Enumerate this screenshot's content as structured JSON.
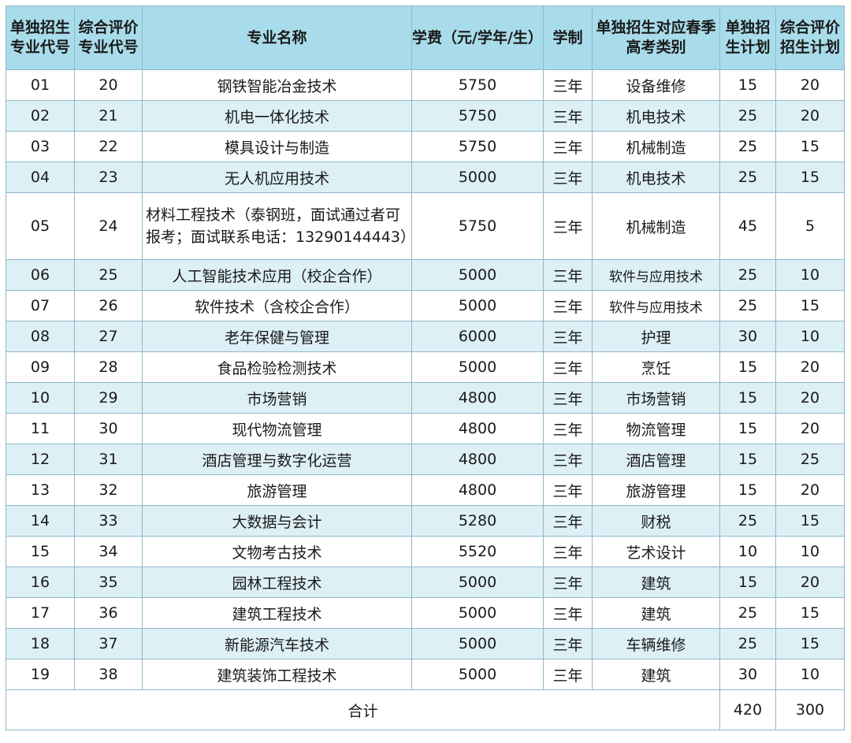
{
  "headers": [
    "单独招生专业代号",
    "综合评价专业代号",
    "专业名称",
    "学费（元/学年/生）",
    "学制",
    "单独招生对应春季高考类别",
    "单独招生计划",
    "综合评价招生计划"
  ],
  "rows": [
    {
      "code1": "01",
      "code2": "20",
      "name": "钢铁智能冶金技术",
      "fee": "5750",
      "years": "三年",
      "category": "设备维修",
      "plan1": "15",
      "plan2": "20"
    },
    {
      "code1": "02",
      "code2": "21",
      "name": "机电一体化技术",
      "fee": "5750",
      "years": "三年",
      "category": "机电技术",
      "plan1": "25",
      "plan2": "20"
    },
    {
      "code1": "03",
      "code2": "22",
      "name": "模具设计与制造",
      "fee": "5750",
      "years": "三年",
      "category": "机械制造",
      "plan1": "25",
      "plan2": "15"
    },
    {
      "code1": "04",
      "code2": "23",
      "name": "无人机应用技术",
      "fee": "5000",
      "years": "三年",
      "category": "机电技术",
      "plan1": "25",
      "plan2": "15"
    },
    {
      "code1": "05",
      "code2": "24",
      "name": "材料工程技术（泰钢班，面试通过者可报考；面试联系电话：13290144443）",
      "fee": "5750",
      "years": "三年",
      "category": "机械制造",
      "plan1": "45",
      "plan2": "5"
    },
    {
      "code1": "06",
      "code2": "25",
      "name": "人工智能技术应用（校企合作）",
      "fee": "5000",
      "years": "三年",
      "category": "软件与应用技术",
      "plan1": "25",
      "plan2": "10"
    },
    {
      "code1": "07",
      "code2": "26",
      "name": "软件技术（含校企合作）",
      "fee": "5000",
      "years": "三年",
      "category": "软件与应用技术",
      "plan1": "25",
      "plan2": "15"
    },
    {
      "code1": "08",
      "code2": "27",
      "name": "老年保健与管理",
      "fee": "6000",
      "years": "三年",
      "category": "护理",
      "plan1": "30",
      "plan2": "10"
    },
    {
      "code1": "09",
      "code2": "28",
      "name": "食品检验检测技术",
      "fee": "5000",
      "years": "三年",
      "category": "烹饪",
      "plan1": "15",
      "plan2": "20"
    },
    {
      "code1": "10",
      "code2": "29",
      "name": "市场营销",
      "fee": "4800",
      "years": "三年",
      "category": "市场营销",
      "plan1": "15",
      "plan2": "20"
    },
    {
      "code1": "11",
      "code2": "30",
      "name": "现代物流管理",
      "fee": "4800",
      "years": "三年",
      "category": "物流管理",
      "plan1": "15",
      "plan2": "20"
    },
    {
      "code1": "12",
      "code2": "31",
      "name": "酒店管理与数字化运营",
      "fee": "4800",
      "years": "三年",
      "category": "酒店管理",
      "plan1": "15",
      "plan2": "25"
    },
    {
      "code1": "13",
      "code2": "32",
      "name": "旅游管理",
      "fee": "4800",
      "years": "三年",
      "category": "旅游管理",
      "plan1": "15",
      "plan2": "20"
    },
    {
      "code1": "14",
      "code2": "33",
      "name": "大数据与会计",
      "fee": "5280",
      "years": "三年",
      "category": "财税",
      "plan1": "25",
      "plan2": "15"
    },
    {
      "code1": "15",
      "code2": "34",
      "name": "文物考古技术",
      "fee": "5520",
      "years": "三年",
      "category": "艺术设计",
      "plan1": "10",
      "plan2": "10"
    },
    {
      "code1": "16",
      "code2": "35",
      "name": "园林工程技术",
      "fee": "5000",
      "years": "三年",
      "category": "建筑",
      "plan1": "15",
      "plan2": "20"
    },
    {
      "code1": "17",
      "code2": "36",
      "name": "建筑工程技术",
      "fee": "5000",
      "years": "三年",
      "category": "建筑",
      "plan1": "25",
      "plan2": "15"
    },
    {
      "code1": "18",
      "code2": "37",
      "name": "新能源汽车技术",
      "fee": "5000",
      "years": "三年",
      "category": "车辆维修",
      "plan1": "25",
      "plan2": "15"
    },
    {
      "code1": "19",
      "code2": "38",
      "name": "建筑装饰工程技术",
      "fee": "5000",
      "years": "三年",
      "category": "建筑",
      "plan1": "30",
      "plan2": "10"
    }
  ],
  "total": {
    "label": "合计",
    "plan1": "420",
    "plan2": "300"
  }
}
